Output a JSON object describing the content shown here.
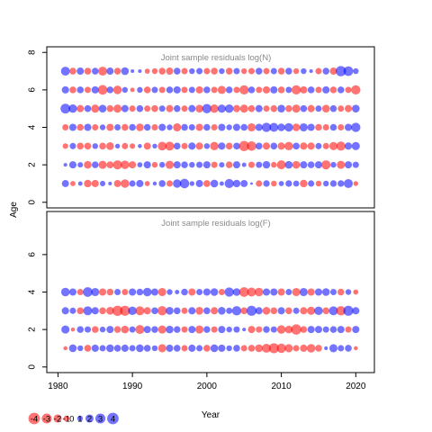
{
  "colors": {
    "positive": "#ff0000",
    "negative": "#0000ff",
    "bubble_opacity": 0.55,
    "frame": "#000000",
    "title": "#8a8a8a"
  },
  "chart_data": [
    {
      "type": "scatter",
      "subtype": "bubble-residuals",
      "title": "Joint sample residuals log(N)",
      "ylabel": "Age",
      "xlabel": "Year",
      "xlim": [
        1978.5,
        2022.5
      ],
      "ylim": [
        -0.3,
        8.3
      ],
      "yticks": [
        0,
        2,
        4,
        6,
        8
      ],
      "xticks": [
        1980,
        1990,
        2000,
        2010,
        2020
      ],
      "years_start": 1981,
      "years_end": 2020,
      "ages": [
        1,
        2,
        3,
        4,
        5,
        6,
        7
      ],
      "residuals": {
        "1": [
          -1.5,
          0.8,
          -0.6,
          1.7,
          1.6,
          -0.9,
          -0.4,
          1.5,
          2.2,
          -1.2,
          -1.6,
          0.8,
          -0.5,
          -1.4,
          1.2,
          -2.1,
          -2.7,
          -0.7,
          -1.6,
          1.4,
          -1.8,
          -0.6,
          -2.5,
          -1.7,
          -1.5,
          -0.2,
          1.2,
          -1.3,
          1.0,
          -0.8,
          -1.3,
          -1.1,
          1.7,
          -1.2,
          1.0,
          -1.0,
          -1.3,
          -1.3,
          -2.4,
          0.7
        ],
        "2": [
          -0.4,
          -1.6,
          -0.9,
          1.8,
          -1.4,
          2.0,
          1.5,
          2.5,
          2.2,
          1.6,
          -0.8,
          -1.6,
          1.0,
          -1.0,
          2.0,
          -1.6,
          -1.4,
          -1.0,
          -1.2,
          -1.6,
          1.2,
          -0.9,
          1.4,
          -1.6,
          -0.6,
          1.2,
          -1.2,
          -1.7,
          1.0,
          2.4,
          -1.8,
          1.8,
          -1.6,
          -1.4,
          -1.6,
          2.5,
          -1.0,
          2.0,
          -1.6,
          -1.2
        ],
        "3": [
          0.9,
          -1.2,
          1.4,
          1.4,
          -1.0,
          1.4,
          1.8,
          -0.7,
          1.2,
          0.9,
          -0.5,
          1.5,
          -0.7,
          2.3,
          2.4,
          -1.4,
          1.2,
          -1.6,
          1.6,
          -1.0,
          2.2,
          -1.6,
          1.4,
          -1.4,
          3.1,
          2.7,
          -1.4,
          1.6,
          -1.4,
          1.6,
          2.2,
          -1.4,
          1.6,
          1.6,
          -1.2,
          1.2,
          2.0,
          2.5,
          -1.6,
          -2.0
        ],
        "4": [
          1.2,
          -1.6,
          1.4,
          -1.6,
          1.2,
          -1.0,
          1.6,
          -1.2,
          1.4,
          -1.4,
          1.8,
          -1.4,
          1.2,
          -1.6,
          -1.0,
          2.0,
          -1.4,
          -1.2,
          1.6,
          -1.4,
          1.2,
          -1.6,
          -1.0,
          -1.6,
          -1.4,
          2.0,
          -1.6,
          -2.6,
          -2.4,
          -1.8,
          -2.2,
          1.8,
          -2.0,
          -1.6,
          1.4,
          1.2,
          -1.4,
          1.2,
          -1.6,
          -2.6
        ],
        "5": [
          -2.9,
          -2.2,
          1.6,
          -1.4,
          2.0,
          -1.8,
          1.4,
          2.0,
          -1.6,
          1.2,
          -1.4,
          1.2,
          1.4,
          -1.2,
          1.6,
          -1.4,
          1.2,
          -1.6,
          1.8,
          -2.6,
          2.2,
          -2.0,
          -2.2,
          1.6,
          2.0,
          1.4,
          -1.6,
          1.2,
          1.4,
          -1.8,
          1.4,
          2.0,
          -1.4,
          1.6,
          -1.2,
          1.8,
          -1.4,
          1.2,
          1.6,
          -1.8
        ],
        "6": [
          -1.6,
          1.4,
          -1.4,
          1.2,
          -1.6,
          2.8,
          -1.4,
          2.2,
          -1.0,
          0.6,
          -1.0,
          1.4,
          -1.2,
          1.2,
          -1.4,
          -1.6,
          1.2,
          -1.2,
          1.6,
          -1.4,
          1.2,
          2.0,
          -1.4,
          1.2,
          2.6,
          -1.4,
          1.2,
          1.6,
          -1.6,
          1.4,
          -1.2,
          2.6,
          1.6,
          -1.4,
          1.2,
          -1.6,
          1.4,
          -1.4,
          1.2,
          2.6
        ],
        "7": [
          -2.4,
          1.4,
          -1.6,
          1.4,
          -1.4,
          2.4,
          -1.6,
          1.4,
          -1.8,
          -0.4,
          -0.4,
          0.8,
          1.0,
          1.4,
          1.6,
          -1.4,
          1.2,
          -1.0,
          -1.2,
          1.2,
          1.4,
          -1.0,
          1.4,
          -1.2,
          1.0,
          1.2,
          -1.4,
          1.2,
          -1.2,
          1.4,
          -1.4,
          1.0,
          -1.0,
          -0.4,
          1.2,
          -1.4,
          1.6,
          -3.2,
          -2.8,
          -1.0
        ]
      }
    },
    {
      "type": "scatter",
      "subtype": "bubble-residuals",
      "title": "Joint sample residuals log(F)",
      "ylabel": "",
      "xlabel": "Year",
      "xlim": [
        1978.5,
        2022.5
      ],
      "ylim": [
        -0.3,
        8.3
      ],
      "yticks": [
        0,
        2,
        4,
        6
      ],
      "xticks": [
        1980,
        1990,
        2000,
        2010,
        2020
      ],
      "years_start": 1981,
      "years_end": 2020,
      "ages": [
        1,
        2,
        3,
        4
      ],
      "residuals": {
        "1": [
          0.5,
          -1.8,
          -1.0,
          1.4,
          -1.6,
          -1.2,
          -1.8,
          -1.4,
          -1.6,
          -1.2,
          -1.8,
          -1.4,
          -1.0,
          2.0,
          -1.6,
          -1.4,
          1.2,
          -1.6,
          -1.2,
          1.4,
          -1.8,
          -1.6,
          -1.0,
          -1.4,
          1.2,
          1.4,
          1.8,
          2.4,
          3.0,
          2.6,
          2.0,
          1.2,
          1.6,
          2.2,
          1.4,
          -0.4,
          -2.0,
          -1.2,
          -1.4,
          0.5
        ],
        "2": [
          -2.0,
          0.5,
          -1.4,
          -1.2,
          1.4,
          -1.0,
          -1.6,
          1.4,
          1.8,
          -1.2,
          2.4,
          -1.6,
          -1.4,
          2.0,
          -1.8,
          -1.4,
          1.2,
          -1.6,
          2.0,
          -1.4,
          1.2,
          -1.6,
          -1.0,
          -1.2,
          -0.4,
          1.6,
          1.2,
          -1.4,
          -1.2,
          2.2,
          1.8,
          3.2,
          1.4,
          -1.6,
          -1.6,
          -1.2,
          -1.4,
          -1.6,
          1.2,
          -1.6
        ],
        "3": [
          -1.6,
          -1.2,
          1.4,
          -2.4,
          -1.6,
          1.4,
          1.8,
          3.2,
          3.0,
          -2.2,
          2.4,
          1.6,
          -1.4,
          2.6,
          -1.8,
          -1.4,
          1.2,
          -1.6,
          1.8,
          -1.4,
          1.6,
          -1.8,
          -1.2,
          -2.6,
          1.4,
          -3.0,
          -1.6,
          1.8,
          1.4,
          -1.6,
          1.4,
          -1.2,
          1.6,
          2.0,
          -2.2,
          1.4,
          -2.4,
          2.6,
          -3.0,
          -1.6
        ],
        "4": [
          -2.2,
          -1.6,
          1.2,
          -2.8,
          -2.0,
          1.6,
          1.4,
          -1.2,
          1.2,
          -1.6,
          -1.4,
          -2.2,
          -1.6,
          2.0,
          -1.0,
          -0.6,
          -1.4,
          1.6,
          -1.2,
          -1.6,
          -1.8,
          1.2,
          -2.6,
          -1.8,
          2.8,
          2.4,
          2.2,
          -1.6,
          -1.6,
          1.6,
          -1.2,
          2.0,
          -2.0,
          1.6,
          -1.6,
          -1.8,
          -1.2,
          1.4,
          -1.0,
          0.8
        ]
      }
    }
  ],
  "legend": {
    "items": [
      {
        "label": "-4",
        "value": -4
      },
      {
        "label": "-3",
        "value": -3
      },
      {
        "label": "-2",
        "value": -2
      },
      {
        "label": "-1",
        "value": -1
      },
      {
        "label": "0",
        "value": 0
      },
      {
        "label": "1",
        "value": 1
      },
      {
        "label": "2",
        "value": 2
      },
      {
        "label": "3",
        "value": 3
      },
      {
        "label": "4",
        "value": 4
      }
    ],
    "placement": "bottom-left"
  }
}
